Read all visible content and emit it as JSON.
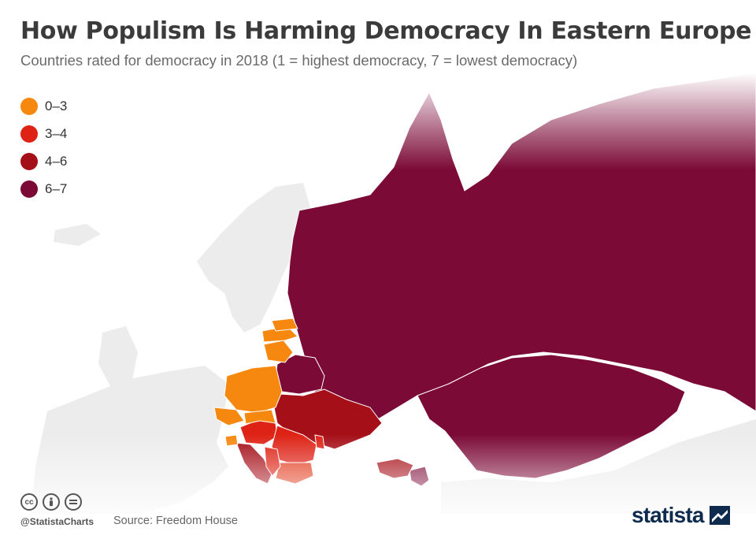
{
  "header": {
    "title": "How Populism Is Harming Democracy In Eastern Europe",
    "subtitle": "Countries rated for democracy in 2018 (1 = highest democracy, 7 = lowest democracy)"
  },
  "legend": {
    "items": [
      {
        "label": "0–3",
        "color": "#f7880f"
      },
      {
        "label": "3–4",
        "color": "#de2316"
      },
      {
        "label": "4–6",
        "color": "#a50f18"
      },
      {
        "label": "6–7",
        "color": "#7c0a37"
      }
    ]
  },
  "footer": {
    "handle": "@StatistaCharts",
    "source": "Source: Freedom House",
    "brand": "statista",
    "license_icons": [
      "cc-icon",
      "by-icon",
      "nd-icon"
    ]
  },
  "colors": {
    "background_land": "#ececec",
    "border": "#ffffff",
    "title": "#3b3b3b",
    "subtitle": "#6a6a6a",
    "brand": "#0e2a4d"
  }
}
